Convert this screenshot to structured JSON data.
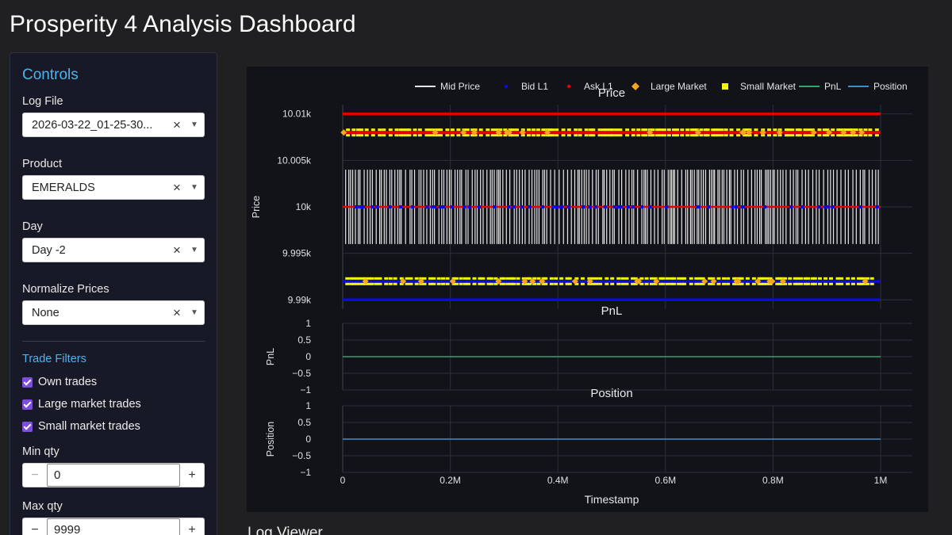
{
  "app": {
    "title": "Prosperity 4 Analysis Dashboard"
  },
  "sidebar": {
    "title": "Controls",
    "log_file": {
      "label": "Log File",
      "value": "2026-03-22_01-25-30..."
    },
    "product": {
      "label": "Product",
      "value": "EMERALDS"
    },
    "day": {
      "label": "Day",
      "value": "Day -2"
    },
    "normalize": {
      "label": "Normalize Prices",
      "value": "None"
    },
    "trade_filters": {
      "title": "Trade Filters",
      "own": "Own trades",
      "large": "Large market trades",
      "small": "Small market trades"
    },
    "min_qty": {
      "label": "Min qty",
      "value": "0",
      "minus": "−",
      "plus": "+"
    },
    "max_qty": {
      "label": "Max qty",
      "value": "9999",
      "minus": "−",
      "plus": "+"
    }
  },
  "log_viewer": {
    "title": "Log Viewer"
  },
  "colors": {
    "mid": "#e6e6e6",
    "bid": "#0a0ae6",
    "ask": "#e60000",
    "large": "#f5a623",
    "small": "#f5f50a",
    "pnl": "#2ca86b",
    "position": "#3a8fd0"
  },
  "chart_data": {
    "type": "line",
    "legend": [
      "Mid Price",
      "Bid L1",
      "Ask L1",
      "Large Market",
      "Small Market",
      "PnL",
      "Position"
    ],
    "legend_position": "top-right",
    "x_label": "Timestamp",
    "x_range": [
      0,
      1000000
    ],
    "x_ticks": [
      "0",
      "0.2M",
      "0.4M",
      "0.6M",
      "0.8M",
      "1M"
    ],
    "subplots": [
      {
        "title": "Price",
        "ylabel": "Price",
        "ylim": [
          9989,
          10011
        ],
        "y_ticks": [
          "10.01k",
          "10.005k",
          "10k",
          "9.995k",
          "9.99k"
        ],
        "y_tick_values": [
          10010,
          10005,
          10000,
          9995,
          9990
        ],
        "series": [
          {
            "name": "Ask L1",
            "levels": [
              10010,
              10008
            ]
          },
          {
            "name": "Bid L1",
            "levels": [
              9990,
              9992
            ]
          },
          {
            "name": "Mid Price",
            "range": [
              9996,
              10004
            ],
            "center": 10000
          },
          {
            "name": "Small Market",
            "levels": [
              10008,
              9992
            ]
          },
          {
            "name": "Large Market",
            "levels": [
              10008,
              9992
            ]
          }
        ]
      },
      {
        "title": "PnL",
        "ylabel": "PnL",
        "ylim": [
          -1,
          1
        ],
        "y_ticks": [
          "1",
          "0.5",
          "0",
          "−0.5",
          "−1"
        ],
        "y_tick_values": [
          1,
          0.5,
          0,
          -0.5,
          -1
        ],
        "series": [
          {
            "name": "PnL",
            "value": 0
          }
        ]
      },
      {
        "title": "Position",
        "ylabel": "Position",
        "ylim": [
          -1,
          1
        ],
        "y_ticks": [
          "1",
          "0.5",
          "0",
          "−0.5",
          "−1"
        ],
        "y_tick_values": [
          1,
          0.5,
          0,
          -0.5,
          -1
        ],
        "series": [
          {
            "name": "Position",
            "value": 0
          }
        ]
      }
    ]
  }
}
